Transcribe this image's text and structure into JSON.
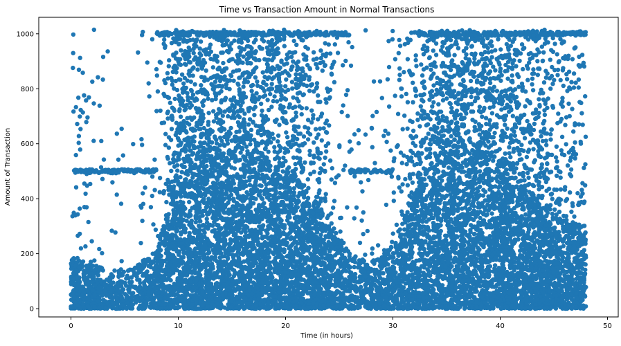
{
  "chart_data": {
    "type": "scatter",
    "title": "Time vs Transaction Amount in Normal Transactions",
    "xlabel": "Time (in hours)",
    "ylabel": "Amount of Transaction",
    "xlim": [
      -3,
      51
    ],
    "ylim": [
      -30,
      1060
    ],
    "xticks": [
      0,
      10,
      20,
      30,
      40,
      50
    ],
    "yticks": [
      0,
      200,
      400,
      600,
      800,
      1000
    ],
    "color": "#1f77b4",
    "grid": false,
    "x_range_of_points": [
      0,
      48
    ],
    "y_range_of_points": [
      0,
      1015
    ],
    "density_profile": {
      "x": [
        0,
        2,
        4,
        6,
        8,
        10,
        12,
        14,
        16,
        18,
        20,
        22,
        24,
        26,
        28,
        30,
        32,
        34,
        36,
        38,
        40,
        42,
        44,
        46,
        48
      ],
      "dense_ceiling": [
        190,
        160,
        140,
        150,
        220,
        520,
        560,
        580,
        590,
        560,
        520,
        430,
        330,
        200,
        170,
        230,
        430,
        560,
        600,
        580,
        520,
        460,
        380,
        320,
        300
      ],
      "relative_density": [
        0.7,
        0.45,
        0.3,
        0.3,
        0.55,
        1.0,
        1.0,
        1.0,
        1.0,
        1.0,
        1.0,
        0.9,
        0.7,
        0.4,
        0.3,
        0.45,
        0.85,
        1.0,
        1.0,
        1.0,
        1.0,
        0.95,
        0.85,
        0.75,
        0.7
      ]
    },
    "horizontal_clusters": [
      {
        "y": 500,
        "x_range": [
          0,
          8
        ]
      },
      {
        "y": 500,
        "x_range": [
          26,
          30
        ]
      },
      {
        "y": 1000,
        "x_range": [
          8,
          26
        ]
      },
      {
        "y": 1000,
        "x_range": [
          32,
          48
        ]
      }
    ]
  }
}
